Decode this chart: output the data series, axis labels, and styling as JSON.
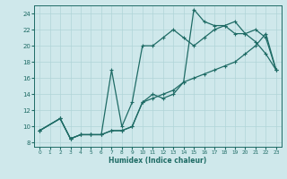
{
  "xlabel": "Humidex (Indice chaleur)",
  "bg_color": "#cfe8eb",
  "grid_color": "#b0d4d8",
  "line_color": "#1e6b65",
  "xlim": [
    -0.5,
    23.5
  ],
  "ylim": [
    7.5,
    25
  ],
  "xticks": [
    0,
    1,
    2,
    3,
    4,
    5,
    6,
    7,
    8,
    9,
    10,
    11,
    12,
    13,
    14,
    15,
    16,
    17,
    18,
    19,
    20,
    21,
    22,
    23
  ],
  "yticks": [
    8,
    10,
    12,
    14,
    16,
    18,
    20,
    22,
    24
  ],
  "line1_x": [
    0,
    2,
    3,
    4,
    5,
    6,
    7,
    8,
    9,
    10,
    11,
    12,
    13,
    14,
    15,
    16,
    17,
    18,
    19,
    20,
    21,
    22,
    23
  ],
  "line1_y": [
    9.5,
    11,
    8.5,
    9,
    9,
    9,
    9.5,
    9.5,
    10,
    13,
    14,
    13.5,
    14,
    15.5,
    24.5,
    23,
    22.5,
    22.5,
    23,
    21.5,
    20.5,
    19,
    17
  ],
  "line2_x": [
    0,
    2,
    3,
    4,
    5,
    6,
    7,
    8,
    9,
    10,
    11,
    12,
    13,
    14,
    15,
    16,
    17,
    18,
    19,
    20,
    21,
    22,
    23
  ],
  "line2_y": [
    9.5,
    11,
    8.5,
    9,
    9,
    9,
    17,
    10,
    13,
    20,
    20,
    21,
    22,
    21,
    20,
    21,
    22,
    22.5,
    21.5,
    21.5,
    22,
    21,
    17
  ],
  "line3_x": [
    0,
    2,
    3,
    4,
    5,
    6,
    7,
    8,
    9,
    10,
    11,
    12,
    13,
    14,
    15,
    16,
    17,
    18,
    19,
    20,
    21,
    22,
    23
  ],
  "line3_y": [
    9.5,
    11,
    8.5,
    9,
    9,
    9,
    9.5,
    9.5,
    10,
    13,
    13.5,
    14,
    14.5,
    15.5,
    16,
    16.5,
    17,
    17.5,
    18,
    19,
    20,
    21.5,
    17
  ]
}
